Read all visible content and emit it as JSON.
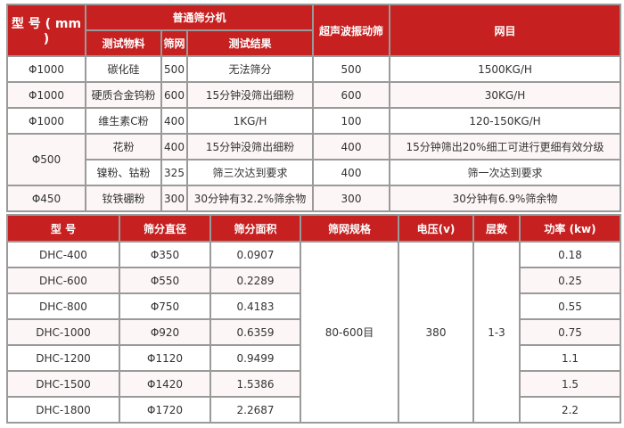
{
  "table1": {
    "header": {
      "model": "型 号 ( mm )",
      "normal_group": "普通筛分机",
      "material": "测试物料",
      "mesh": "筛网",
      "result": "测试结果",
      "ultrasonic": "超声波振动筛",
      "mesh_result": "网目"
    },
    "rows": [
      {
        "model": "Φ1000",
        "material": "碳化硅",
        "mesh": "500",
        "result": "无法筛分",
        "ultrasonic": "500",
        "mesh_result": "1500KG/H"
      },
      {
        "model": "Φ1000",
        "material": "硬质合金钨粉",
        "mesh": "600",
        "result": "15分钟没筛出细粉",
        "ultrasonic": "600",
        "mesh_result": "30KG/H"
      },
      {
        "model": "Φ1000",
        "material": "维生素C粉",
        "mesh": "400",
        "result": "1KG/H",
        "ultrasonic": "100",
        "mesh_result": "120-150KG/H"
      },
      {
        "model": "Φ500",
        "material": "花粉",
        "mesh": "400",
        "result": "15分钟没筛出细粉",
        "ultrasonic": "400",
        "mesh_result": "15分钟筛出20%细工可进行更细有效分级"
      },
      {
        "model": "Φ500",
        "material": "镍粉、钴粉",
        "mesh": "325",
        "result": "筛三次达到要求",
        "ultrasonic": "400",
        "mesh_result": "筛一次达到要求"
      },
      {
        "model": "Φ450",
        "material": "钕铁硼粉",
        "mesh": "300",
        "result": "30分钟有32.2%筛余物",
        "ultrasonic": "300",
        "mesh_result": "30分钟有6.9%筛余物"
      }
    ]
  },
  "table2": {
    "headers": [
      "型 号",
      "筛分直径",
      "筛分面积",
      "筛网规格",
      "电压(v)",
      "层数",
      "功率 (kw)"
    ],
    "shared": {
      "mesh_spec": "80-600目",
      "voltage": "380",
      "layers": "1-3"
    },
    "rows": [
      {
        "model": "DHC-400",
        "diameter": "Φ350",
        "area": "0.0907",
        "power": "0.18"
      },
      {
        "model": "DHC-600",
        "diameter": "Φ550",
        "area": "0.2289",
        "power": "0.25"
      },
      {
        "model": "DHC-800",
        "diameter": "Φ750",
        "area": "0.4183",
        "power": "0.55"
      },
      {
        "model": "DHC-1000",
        "diameter": "Φ920",
        "area": "0.6359",
        "power": "0.75"
      },
      {
        "model": "DHC-1200",
        "diameter": "Φ1120",
        "area": "0.9499",
        "power": "1.1"
      },
      {
        "model": "DHC-1500",
        "diameter": "Φ1420",
        "area": "1.5386",
        "power": "1.5"
      },
      {
        "model": "DHC-1800",
        "diameter": "Φ1720",
        "area": "2.2687",
        "power": "2.2"
      }
    ]
  },
  "colors": {
    "header_red": "#c62020",
    "border": "#9a9a9a",
    "alt_row": "#fdf6f6"
  }
}
